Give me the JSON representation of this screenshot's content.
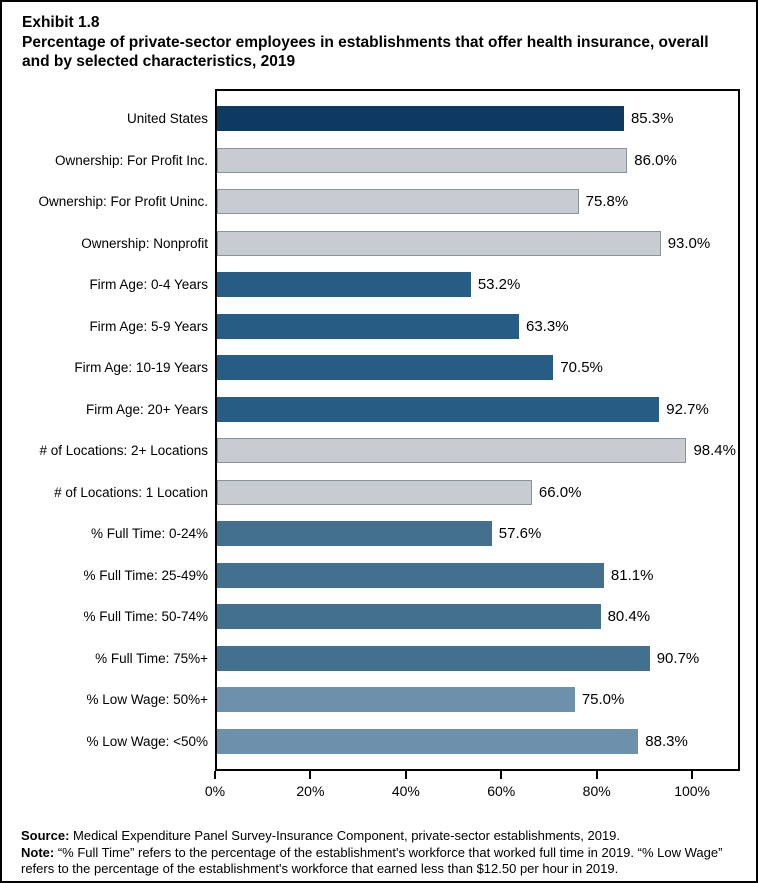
{
  "header": {
    "exhibit": "Exhibit 1.8",
    "title_lines": [
      "Percentage of private-sector employees in establishments that offer health insurance, overall",
      "and by selected characteristics, 2019"
    ]
  },
  "chart_data": {
    "type": "bar",
    "orientation": "horizontal",
    "title": "Percentage of private-sector employees in establishments that offer health insurance, overall and by selected characteristics, 2019",
    "xlabel": "",
    "ylabel": "",
    "xlim": [
      0,
      110
    ],
    "grid": false,
    "x_ticks": [
      {
        "value": 0,
        "label": "0%"
      },
      {
        "value": 20,
        "label": "20%"
      },
      {
        "value": 40,
        "label": "40%"
      },
      {
        "value": 60,
        "label": "60%"
      },
      {
        "value": 80,
        "label": "80%"
      },
      {
        "value": 100,
        "label": "100%"
      }
    ],
    "bars": [
      {
        "category": "United States",
        "value": 85.3,
        "label": "85.3%",
        "group": "overall"
      },
      {
        "category": "Ownership: For Profit Inc.",
        "value": 86.0,
        "label": "86.0%",
        "group": "ownership"
      },
      {
        "category": "Ownership: For Profit Uninc.",
        "value": 75.8,
        "label": "75.8%",
        "group": "ownership"
      },
      {
        "category": "Ownership: Nonprofit",
        "value": 93.0,
        "label": "93.0%",
        "group": "ownership"
      },
      {
        "category": "Firm Age: 0-4 Years",
        "value": 53.2,
        "label": "53.2%",
        "group": "firm_age"
      },
      {
        "category": "Firm Age: 5-9 Years",
        "value": 63.3,
        "label": "63.3%",
        "group": "firm_age"
      },
      {
        "category": "Firm Age: 10-19 Years",
        "value": 70.5,
        "label": "70.5%",
        "group": "firm_age"
      },
      {
        "category": "Firm Age: 20+ Years",
        "value": 92.7,
        "label": "92.7%",
        "group": "firm_age"
      },
      {
        "category": "# of Locations: 2+ Locations",
        "value": 98.4,
        "label": "98.4%",
        "group": "locations"
      },
      {
        "category": "# of Locations: 1 Location",
        "value": 66.0,
        "label": "66.0%",
        "group": "locations"
      },
      {
        "category": "% Full Time: 0-24%",
        "value": 57.6,
        "label": "57.6%",
        "group": "full_time"
      },
      {
        "category": "% Full Time: 25-49%",
        "value": 81.1,
        "label": "81.1%",
        "group": "full_time"
      },
      {
        "category": "% Full Time: 50-74%",
        "value": 80.4,
        "label": "80.4%",
        "group": "full_time"
      },
      {
        "category": "% Full Time: 75%+",
        "value": 90.7,
        "label": "90.7%",
        "group": "full_time"
      },
      {
        "category": "% Low Wage: 50%+",
        "value": 75.0,
        "label": "75.0%",
        "group": "low_wage"
      },
      {
        "category": "% Low Wage: <50%",
        "value": 88.3,
        "label": "88.3%",
        "group": "low_wage"
      }
    ],
    "palette": {
      "overall": "#0e3a62",
      "ownership": "#c6ccd2",
      "firm_age": "#275d84",
      "locations": "#c6ccd2",
      "full_time": "#44708f",
      "low_wage": "#6d90ad",
      "gray_border": "#8a929a",
      "axis": "#000000"
    }
  },
  "footer": {
    "source_label": "Source:",
    "source_text": " Medical Expenditure Panel Survey-Insurance Component, private-sector establishments, 2019.",
    "note_label": "Note:",
    "note_lines": [
      " “% Full Time” refers to the percentage of the establishment's workforce that worked full time in 2019. “% Low Wage”",
      "refers to the percentage of the establishment's workforce that earned less than $12.50 per hour in 2019."
    ]
  }
}
